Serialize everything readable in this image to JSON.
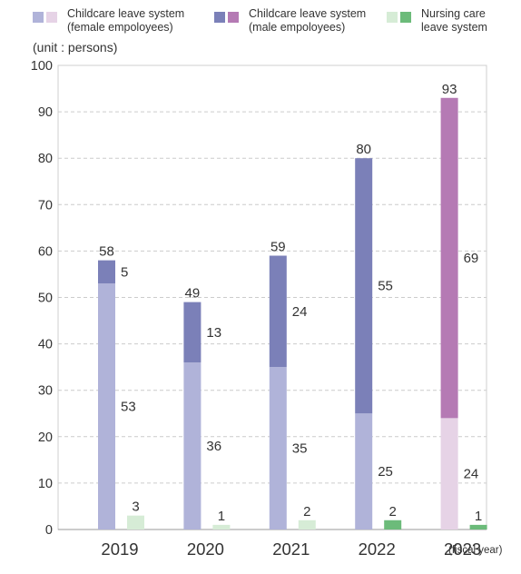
{
  "chart_data": {
    "type": "bar",
    "stacked": true,
    "unit_label": "(unit : persons)",
    "x_suffix": "(fiscal year)",
    "ylim": [
      0,
      100
    ],
    "yticks": [
      0,
      10,
      20,
      30,
      40,
      50,
      60,
      70,
      80,
      90,
      100
    ],
    "grid": true,
    "legend_position": "top",
    "legend": [
      {
        "label": "Childcare leave system\n(female empoloyees)",
        "colors": [
          "#b0b3d9",
          "#e6d3e6"
        ]
      },
      {
        "label": "Childcare leave system\n(male empoloyees)",
        "colors": [
          "#7b80b8",
          "#b57ab4"
        ]
      },
      {
        "label": "Nursing care\nleave system",
        "colors": [
          "#d6ecd6",
          "#6cbb7a"
        ]
      }
    ],
    "categories": [
      "2019",
      "2020",
      "2021",
      "2022",
      "2023"
    ],
    "childcare": {
      "female": [
        53,
        36,
        35,
        25,
        24
      ],
      "male": [
        5,
        13,
        24,
        55,
        69
      ],
      "total": [
        58,
        49,
        59,
        80,
        93
      ]
    },
    "nursing": [
      3,
      1,
      2,
      2,
      1
    ],
    "colors": {
      "female": [
        "#b0b3d9",
        "#b0b3d9",
        "#b0b3d9",
        "#b0b3d9",
        "#e6d3e6"
      ],
      "male": [
        "#7b80b8",
        "#7b80b8",
        "#7b80b8",
        "#7b80b8",
        "#b57ab4"
      ],
      "nursing": [
        "#d6ecd6",
        "#d6ecd6",
        "#d6ecd6",
        "#6cbb7a",
        "#6cbb7a"
      ]
    }
  }
}
